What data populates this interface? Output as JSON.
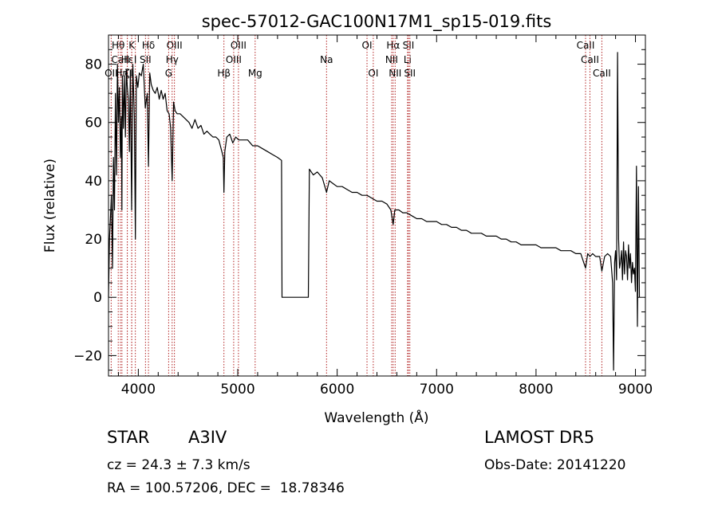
{
  "chart_data": {
    "type": "line",
    "title": "spec-57012-GAC100N17M1_sp15-019.fits",
    "xlabel": "Wavelength (Å)",
    "ylabel": "Flux (relative)",
    "xlim": [
      3700,
      9100
    ],
    "ylim": [
      -27,
      90
    ],
    "xticks": [
      4000,
      5000,
      6000,
      7000,
      8000,
      9000
    ],
    "xtick_labels": [
      "4000",
      "5000",
      "6000",
      "7000",
      "8000",
      "9000"
    ],
    "yticks": [
      -20,
      0,
      20,
      40,
      60,
      80
    ],
    "ytick_labels": [
      "−20",
      "0",
      "20",
      "40",
      "60",
      "80"
    ],
    "line_color": "#000000",
    "marker_color": "#b22222",
    "series": [
      {
        "x": [
          3700,
          3710,
          3730,
          3740,
          3750,
          3760,
          3770,
          3780,
          3790,
          3800,
          3810,
          3820,
          3830,
          3835,
          3840,
          3850,
          3860,
          3870,
          3880,
          3889,
          3900,
          3910,
          3920,
          3933,
          3945,
          3960,
          3970,
          3980,
          3995,
          4010,
          4030,
          4050,
          4070,
          4090,
          4102,
          4115,
          4130,
          4150,
          4170,
          4190,
          4210,
          4230,
          4250,
          4270,
          4290,
          4310,
          4325,
          4340,
          4355,
          4370,
          4390,
          4420,
          4450,
          4480,
          4510,
          4540,
          4570,
          4600,
          4630,
          4660,
          4690,
          4720,
          4750,
          4780,
          4810,
          4840,
          4855,
          4861,
          4870,
          4890,
          4920,
          4950,
          4980,
          5010,
          5050,
          5100,
          5150,
          5200,
          5250,
          5300,
          5350,
          5400,
          5440,
          5445,
          5600,
          5710,
          5720,
          5760,
          5800,
          5850,
          5893,
          5920,
          5960,
          6000,
          6050,
          6100,
          6150,
          6200,
          6250,
          6300,
          6350,
          6400,
          6450,
          6500,
          6540,
          6563,
          6580,
          6620,
          6660,
          6700,
          6750,
          6800,
          6850,
          6900,
          6950,
          7000,
          7050,
          7100,
          7150,
          7200,
          7250,
          7300,
          7350,
          7400,
          7450,
          7500,
          7550,
          7600,
          7650,
          7700,
          7750,
          7800,
          7850,
          7900,
          7950,
          8000,
          8050,
          8100,
          8150,
          8200,
          8250,
          8300,
          8350,
          8400,
          8450,
          8498,
          8520,
          8542,
          8570,
          8600,
          8640,
          8662,
          8690,
          8720,
          8750,
          8770,
          8780,
          8790,
          8800,
          8810,
          8820,
          8830,
          8840,
          8850,
          8860,
          8870,
          8880,
          8890,
          8900,
          8910,
          8920,
          8930,
          8940,
          8950,
          8960,
          8970,
          8980,
          8990,
          9000,
          9010,
          9020,
          9030,
          9040
        ],
        "y": [
          0,
          20,
          35,
          10,
          48,
          30,
          70,
          42,
          80,
          60,
          72,
          48,
          62,
          30,
          76,
          58,
          76,
          55,
          78,
          72,
          68,
          50,
          78,
          30,
          80,
          62,
          20,
          76,
          72,
          77,
          76,
          80,
          65,
          70,
          45,
          77,
          73,
          71,
          70,
          72,
          68,
          71,
          68,
          70,
          64,
          63,
          58,
          40,
          67,
          64,
          63,
          63,
          62,
          61,
          60,
          58,
          61,
          58,
          59,
          56,
          57,
          56,
          55,
          55,
          54,
          50,
          48,
          36,
          50,
          55,
          56,
          53,
          55,
          54,
          54,
          54,
          52,
          52,
          51,
          50,
          49,
          48,
          47,
          0,
          0,
          0,
          44,
          42,
          43,
          41,
          36,
          40,
          39,
          38,
          38,
          37,
          36,
          36,
          35,
          35,
          34,
          33,
          33,
          32,
          30,
          25,
          30,
          30,
          29,
          29,
          28,
          27,
          27,
          26,
          26,
          26,
          25,
          25,
          24,
          24,
          23,
          23,
          22,
          22,
          22,
          21,
          21,
          21,
          20,
          20,
          19,
          19,
          18,
          18,
          18,
          18,
          17,
          17,
          17,
          17,
          16,
          16,
          16,
          15,
          15,
          10,
          15,
          14,
          15,
          14,
          14,
          9,
          14,
          15,
          14,
          5,
          -25,
          12,
          16,
          6,
          84,
          20,
          10,
          12,
          16,
          6,
          19,
          8,
          16,
          14,
          6,
          18,
          10,
          15,
          5,
          12,
          8,
          10,
          2,
          45,
          -10,
          38,
          0
        ]
      }
    ],
    "line_markers": [
      {
        "label": "Hθ",
        "x": 3798,
        "row": 0
      },
      {
        "label": "K",
        "x": 3934,
        "row": 0
      },
      {
        "label": "Hδ",
        "x": 4102,
        "row": 0
      },
      {
        "label": "OIII",
        "x": 4363,
        "row": 0
      },
      {
        "label": "OIII",
        "x": 5007,
        "row": 0
      },
      {
        "label": "OI",
        "x": 6300,
        "row": 0
      },
      {
        "label": "Hα",
        "x": 6563,
        "row": 0
      },
      {
        "label": "SII",
        "x": 6717,
        "row": 0
      },
      {
        "label": "CaII",
        "x": 8498,
        "row": 0
      },
      {
        "label": "CaII",
        "x": 3820,
        "row": 1
      },
      {
        "label": "Hε",
        "x": 3889,
        "row": 1
      },
      {
        "label": "I",
        "x": 3970,
        "row": 1
      },
      {
        "label": "SII",
        "x": 4072,
        "row": 1
      },
      {
        "label": "Hγ",
        "x": 4340,
        "row": 1
      },
      {
        "label": "OIII",
        "x": 4959,
        "row": 1
      },
      {
        "label": "NII",
        "x": 6548,
        "row": 1
      },
      {
        "label": "Li",
        "x": 6708,
        "row": 1
      },
      {
        "label": "CaII",
        "x": 8542,
        "row": 1
      },
      {
        "label": "OII",
        "x": 3727,
        "row": 2
      },
      {
        "label": "Hη",
        "x": 3835,
        "row": 2
      },
      {
        "label": "ζ",
        "x": 3889,
        "row": 2
      },
      {
        "label": "I",
        "x": 3933,
        "row": 2
      },
      {
        "label": "G",
        "x": 4305,
        "row": 2
      },
      {
        "label": "Hβ",
        "x": 4861,
        "row": 2
      },
      {
        "label": "Mg",
        "x": 5175,
        "row": 2
      },
      {
        "label": "Na",
        "x": 5893,
        "row": 1
      },
      {
        "label": "OI",
        "x": 6363,
        "row": 2
      },
      {
        "label": "NII",
        "x": 6583,
        "row": 2
      },
      {
        "label": "SII",
        "x": 6731,
        "row": 2
      },
      {
        "label": "CaII",
        "x": 8662,
        "row": 2
      }
    ]
  },
  "info": {
    "class": "STAR",
    "subclass": "A3IV",
    "cz": "cz = 24.3 ± 7.3 km/s",
    "radec": "RA = 100.57206, DEC =  18.78346",
    "survey": "LAMOST DR5",
    "obsdate": "Obs-Date: 20141220"
  }
}
